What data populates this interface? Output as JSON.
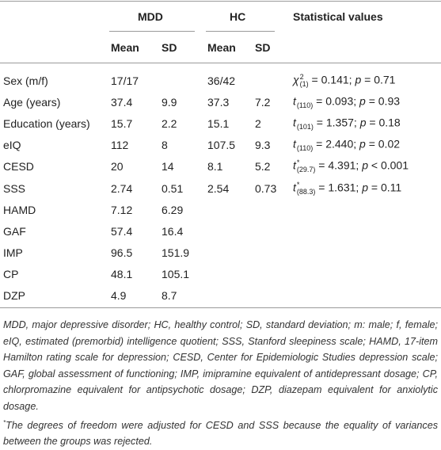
{
  "table": {
    "header": {
      "group_mdd": "MDD",
      "group_hc": "HC",
      "stat": "Statistical values",
      "sub": [
        "Mean",
        "SD",
        "Mean",
        "SD"
      ]
    },
    "rows": [
      {
        "label": "Sex (m/f)",
        "cells": [
          "17/17",
          null,
          "36/42",
          null
        ],
        "stat": {
          "sym": "χ",
          "sup": "2",
          "sub": "(1)",
          "eq": " = 0.141; ",
          "p": "p",
          "rest": " = 0.71"
        }
      },
      {
        "label": "Age (years)",
        "cells": [
          "37.4",
          "9.9",
          "37.3",
          "7.2"
        ],
        "stat": {
          "sym": "t",
          "sup": null,
          "sub": "(110)",
          "eq": " = 0.093; ",
          "p": "p",
          "rest": " = 0.93"
        }
      },
      {
        "label": "Education (years)",
        "cells": [
          "15.7",
          "2.2",
          "15.1",
          "2"
        ],
        "stat": {
          "sym": "t",
          "sup": null,
          "sub": "(101)",
          "eq": " = 1.357; ",
          "p": "p",
          "rest": " = 0.18"
        }
      },
      {
        "label": "eIQ",
        "cells": [
          "112",
          "8",
          "107.5",
          "9.3"
        ],
        "stat": {
          "sym": "t",
          "sup": null,
          "sub": "(110)",
          "eq": " = 2.440; ",
          "p": "p",
          "rest": " = 0.02"
        }
      },
      {
        "label": "CESD",
        "cells": [
          "20",
          "14",
          "8.1",
          "5.2"
        ],
        "stat": {
          "sym": "t",
          "sup": "*",
          "sub": "(29.7)",
          "eq": " = 4.391; ",
          "p": "p",
          "rest": " < 0.001"
        }
      },
      {
        "label": "SSS",
        "cells": [
          "2.74",
          "0.51",
          "2.54",
          "0.73"
        ],
        "stat": {
          "sym": "t",
          "sup": "*",
          "sub": "(88.3)",
          "eq": " = 1.631; ",
          "p": "p",
          "rest": " = 0.11"
        }
      },
      {
        "label": "HAMD",
        "cells": [
          "7.12",
          "6.29",
          null,
          null
        ],
        "stat": null
      },
      {
        "label": "GAF",
        "cells": [
          "57.4",
          "16.4",
          null,
          null
        ],
        "stat": null
      },
      {
        "label": "IMP",
        "cells": [
          "96.5",
          "151.9",
          null,
          null
        ],
        "stat": null
      },
      {
        "label": "CP",
        "cells": [
          "48.1",
          "105.1",
          null,
          null
        ],
        "stat": null
      },
      {
        "label": "DZP",
        "cells": [
          "4.9",
          "8.7",
          null,
          null
        ],
        "stat": null
      }
    ]
  },
  "footnotes": {
    "abbreviations": "MDD, major depressive disorder; HC, healthy control; SD, standard deviation; m: male; f, female; eIQ, estimated (premorbid) intelligence quotient; SSS, Stanford sleepiness scale; HAMD, 17-item Hamilton rating scale for depression; CESD, Center for Epidemiologic Studies depression scale; GAF, global assessment of functioning; IMP, imipramine equivalent of antidepressant dosage; CP, chlorpromazine equivalent for antipsychotic dosage; DZP, diazepam equivalent for anxiolytic dosage.",
    "note_marker": "*",
    "note": "The degrees of freedom were adjusted for CESD and SSS because the equality of variances between the groups was rejected."
  }
}
